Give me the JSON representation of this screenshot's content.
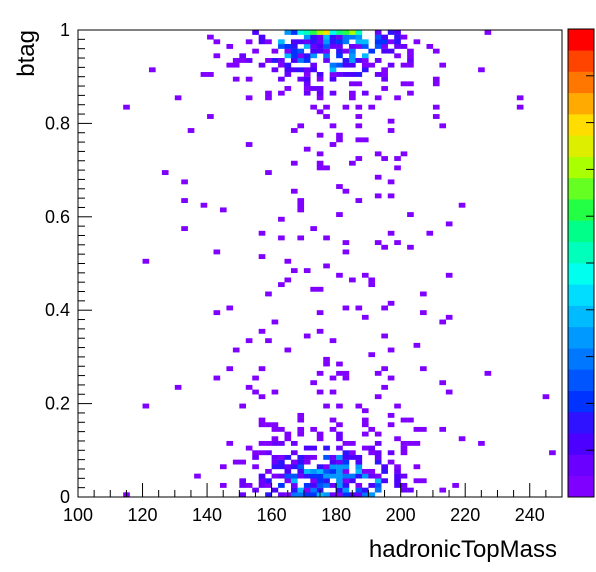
{
  "chart_data": {
    "type": "heatmap",
    "title": "",
    "xlabel": "hadronicTopMass",
    "ylabel": "btag",
    "xlim": [
      100,
      250
    ],
    "ylim": [
      0,
      1
    ],
    "x_ticks": [
      "100",
      "120",
      "140",
      "160",
      "180",
      "200",
      "220",
      "240"
    ],
    "y_ticks": [
      "0",
      "0.2",
      "0.4",
      "0.6",
      "0.8",
      "1"
    ],
    "x_bins": 75,
    "y_bins": 100,
    "colorbar": {
      "palette": "rainbow",
      "levels": 20,
      "colors": [
        "#7f00ff",
        "#6a00ff",
        "#4c00ff",
        "#2f12ff",
        "#0033ff",
        "#0055ff",
        "#0077ff",
        "#0099ff",
        "#00bbff",
        "#00ddff",
        "#00ffee",
        "#00ffbb",
        "#00ff88",
        "#22ff44",
        "#66ff22",
        "#aaff00",
        "#ddee00",
        "#ffdd00",
        "#ffaa00",
        "#ff7700",
        "#ff4400",
        "#ff0000"
      ],
      "tick_labels": []
    },
    "distribution": {
      "description_peaks": [
        {
          "x": 177,
          "y": 0.07,
          "level": "high"
        },
        {
          "x": 177,
          "y": 0.93,
          "level": "high"
        },
        {
          "x": 180,
          "y": 0.995,
          "level": "max"
        }
      ]
    }
  }
}
